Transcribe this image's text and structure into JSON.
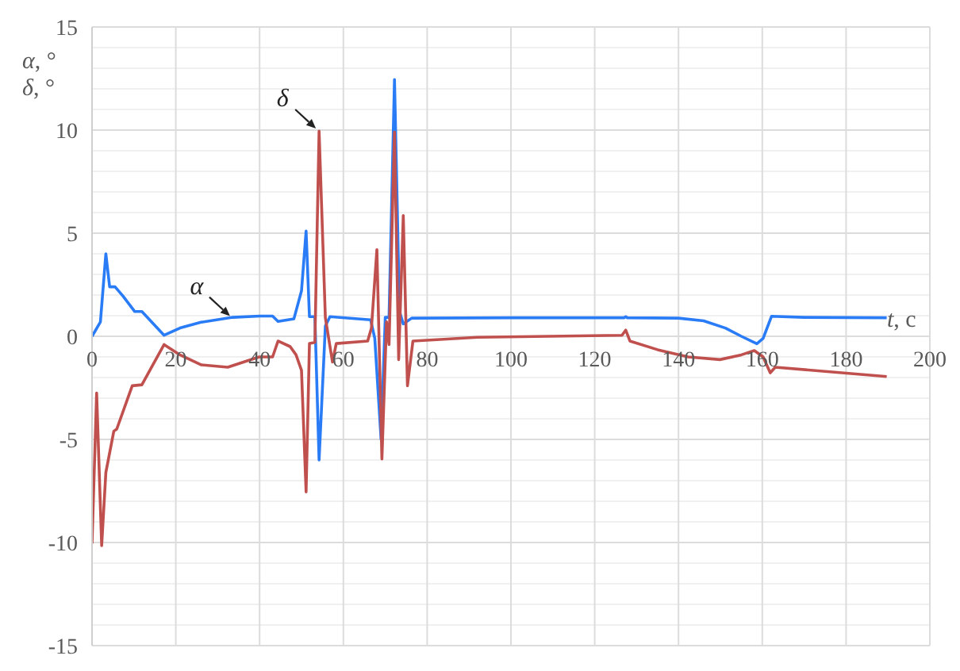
{
  "chart_data": {
    "type": "line",
    "ylabel": "α, °\nδ, °",
    "xlabel": "t, c",
    "xlim": [
      0,
      200
    ],
    "xticks": [
      0,
      20,
      40,
      60,
      80,
      100,
      120,
      140,
      160,
      180,
      200
    ],
    "ylim": [
      -15,
      15
    ],
    "yticks": [
      -15,
      {
        "value": -14,
        "label": null
      },
      {
        "value": -13,
        "label": null
      },
      {
        "value": -12,
        "label": null
      },
      {
        "value": -11,
        "label": null
      },
      -10,
      {
        "value": -9,
        "label": null
      },
      {
        "value": -8,
        "label": null
      },
      {
        "value": -7,
        "label": null
      },
      {
        "value": -6,
        "label": null
      },
      -5,
      {
        "value": -4,
        "label": null
      },
      {
        "value": -3,
        "label": null
      },
      {
        "value": -2,
        "label": null
      },
      {
        "value": -1,
        "label": null
      },
      0,
      {
        "value": 1,
        "label": null
      },
      {
        "value": 2,
        "label": null
      },
      {
        "value": 3,
        "label": null
      },
      {
        "value": 4,
        "label": null
      },
      5,
      {
        "value": 6,
        "label": null
      },
      {
        "value": 7,
        "label": null
      },
      {
        "value": 8,
        "label": null
      },
      {
        "value": 9,
        "label": null
      },
      10,
      {
        "value": 11,
        "label": null
      },
      {
        "value": 12,
        "label": null
      },
      {
        "value": 13,
        "label": null
      },
      {
        "value": 14,
        "label": null
      },
      15
    ],
    "grid": true,
    "series": [
      {
        "color": "#2a7cf6",
        "x": [
          0,
          2,
          3.3,
          4.2,
          5.5,
          7.4,
          10.2,
          11.9,
          17.2,
          21,
          26,
          33.6,
          40,
          43.1,
          44.4,
          48.2,
          50,
          51.1,
          51.9,
          53.2,
          54.2,
          55.7,
          56.8,
          66.5,
          67.5,
          69,
          70,
          70.9,
          72.2,
          73.4,
          74.3,
          76.3,
          100,
          127,
          127.4,
          127.8,
          140,
          146,
          151.2,
          155,
          158.7,
          160.2,
          162.2,
          170,
          189.7
        ],
        "values": [
          0,
          0.7,
          4.0,
          2.4,
          2.4,
          1.95,
          1.2,
          1.2,
          0.05,
          0.4,
          0.68,
          0.92,
          0.98,
          0.98,
          0.72,
          0.85,
          2.2,
          5.1,
          0.95,
          0.95,
          -6.0,
          0.5,
          0.95,
          0.8,
          -0.1,
          -5.0,
          0.92,
          0.92,
          12.45,
          1.2,
          0.6,
          0.88,
          0.9,
          0.9,
          0.95,
          0.9,
          0.88,
          0.75,
          0.4,
          0.0,
          -0.36,
          -0.1,
          0.97,
          0.92,
          0.9
        ]
      },
      {
        "color": "#c0504d",
        "x": [
          0,
          1.1,
          2.3,
          3.3,
          5.2,
          5.9,
          9.6,
          11.9,
          17.2,
          21,
          26,
          32.4,
          39.9,
          43.1,
          44.4,
          47.3,
          48.7,
          50,
          51.1,
          51.9,
          53.2,
          54.2,
          55.7,
          57.4,
          58.3,
          65.8,
          66.7,
          68,
          69.2,
          70.3,
          70.9,
          72.2,
          73.2,
          74.3,
          75.3,
          76.6,
          92,
          126.5,
          127.4,
          128.4,
          135,
          142.3,
          149.9,
          155,
          158.1,
          160.2,
          161.9,
          163.1,
          189.7
        ],
        "values": [
          -10.05,
          -2.75,
          -10.15,
          -6.6,
          -4.6,
          -4.5,
          -2.4,
          -2.35,
          -0.4,
          -0.9,
          -1.38,
          -1.5,
          -1.0,
          -1.0,
          -0.23,
          -0.5,
          -0.9,
          -1.65,
          -7.55,
          -0.35,
          -0.3,
          9.95,
          0.9,
          -1.25,
          -0.35,
          -0.23,
          0.4,
          4.2,
          -5.95,
          0.7,
          -0.4,
          9.9,
          -1.13,
          5.85,
          -2.4,
          -0.23,
          -0.05,
          0.05,
          0.3,
          -0.23,
          -0.65,
          -1.0,
          -1.13,
          -0.9,
          -0.69,
          -1.0,
          -1.77,
          -1.5,
          -1.95
        ]
      }
    ],
    "annotations": [
      {
        "text": "α",
        "x": 33.7,
        "y": 0.9
      },
      {
        "text": "δ",
        "x": 54.2,
        "y": 10
      }
    ]
  }
}
